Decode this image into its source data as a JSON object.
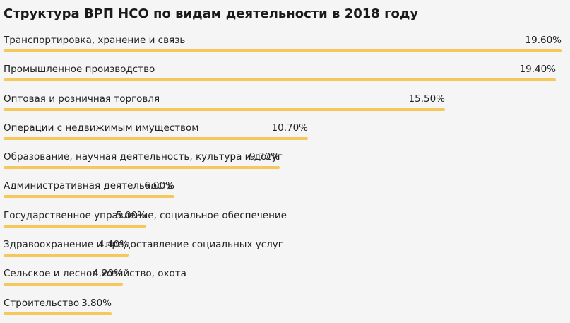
{
  "chart_data": {
    "type": "bar",
    "title": "Структура ВРП НСО по видам деятельности в 2018 году",
    "categories": [
      "Транспортировка, хранение и связь",
      "Промышленное производство",
      "Оптовая и розничная торговля",
      "Операции с недвижимым имуществом",
      "Образование, научная деятельность, культура и досуг",
      "Административная деятельность",
      "Государственное управление, социальное обеспечение",
      "Здравоохранение и предоставление социальных услуг",
      "Сельское и лесное хозяйство, охота",
      "Строительство"
    ],
    "values": [
      19.6,
      19.4,
      15.5,
      10.7,
      9.7,
      6.0,
      5.0,
      4.4,
      4.2,
      3.8
    ],
    "value_labels": [
      "19.60%",
      "19.40%",
      "15.50%",
      "10.70%",
      "9.70%",
      "6.00%",
      "5.00%",
      "4.40%",
      "4.20%",
      "3.80%"
    ],
    "xlim": [
      0,
      19.6
    ],
    "orientation": "horizontal",
    "bar_color": "#f6c75a",
    "grid": false
  }
}
